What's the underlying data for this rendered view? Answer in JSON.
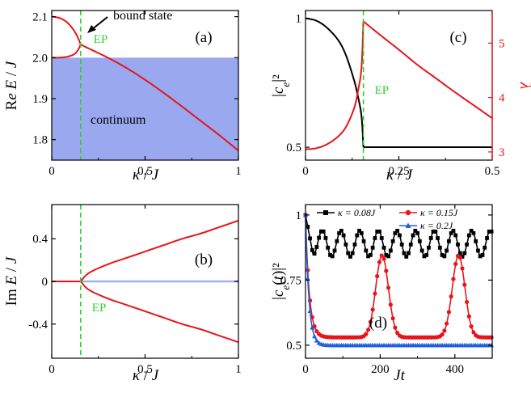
{
  "figure": {
    "colors": {
      "red": "#e8141c",
      "black": "#000000",
      "blue": "#1f5fe0",
      "green": "#2fd12f",
      "continuum_fill": "#9aa8f0",
      "im_blue_line": "#9fb0ee"
    }
  },
  "chart_data": [
    {
      "id": "a",
      "type": "line",
      "panel_label": "(a)",
      "xlabel": "κ / J",
      "ylabel": "Re E / J",
      "xlim": [
        0,
        1
      ],
      "ylim": [
        1.75,
        2.115
      ],
      "xticks": [
        0,
        0.5,
        1
      ],
      "xtick_labels": [
        "0",
        "0.5",
        "1"
      ],
      "yticks": [
        1.8,
        1.9,
        2.0,
        2.1
      ],
      "ytick_labels": [
        "1.8",
        "1.9",
        "2.0",
        "2.1"
      ],
      "ep_x": 0.155,
      "ep_label": "EP",
      "annotations": {
        "bound_state": "bound state",
        "continuum": "continuum"
      },
      "continuum_band": [
        1.75,
        2.0
      ],
      "series": [
        {
          "name": "upper branch",
          "color": "red",
          "x": [
            0,
            0.04,
            0.08,
            0.11,
            0.13,
            0.145,
            0.155
          ],
          "y": [
            2.1,
            2.097,
            2.087,
            2.072,
            2.058,
            2.044,
            2.032
          ]
        },
        {
          "name": "lower branch",
          "color": "red",
          "x": [
            0,
            0.04,
            0.08,
            0.11,
            0.13,
            0.145,
            0.155
          ],
          "y": [
            2.0,
            2.0,
            2.002,
            2.006,
            2.012,
            2.022,
            2.032
          ]
        },
        {
          "name": "after EP",
          "color": "red",
          "x": [
            0.155,
            0.2,
            0.3,
            0.4,
            0.5,
            0.6,
            0.7,
            0.8,
            0.9,
            1.0
          ],
          "y": [
            2.032,
            2.022,
            2.0,
            1.975,
            1.946,
            1.914,
            1.88,
            1.845,
            1.81,
            1.773
          ]
        }
      ]
    },
    {
      "id": "b",
      "type": "line",
      "panel_label": "(b)",
      "xlabel": "κ / J",
      "ylabel": "Im E / J",
      "xlim": [
        0,
        1
      ],
      "ylim": [
        -0.72,
        0.72
      ],
      "xticks": [
        0,
        0.5,
        1
      ],
      "xtick_labels": [
        "0",
        "0.5",
        "1"
      ],
      "yticks": [
        -0.4,
        0,
        0.4
      ],
      "ytick_labels": [
        "-0.4",
        "0",
        "0.4"
      ],
      "ep_x": 0.155,
      "ep_label": "EP",
      "series": [
        {
          "name": "zero line",
          "color": "im_blue_line",
          "x": [
            0.155,
            1.0
          ],
          "y": [
            0,
            0
          ]
        },
        {
          "name": "before EP",
          "color": "red",
          "x": [
            0,
            0.155
          ],
          "y": [
            0,
            0
          ]
        },
        {
          "name": "upper",
          "color": "red",
          "x": [
            0.155,
            0.2,
            0.3,
            0.4,
            0.5,
            0.6,
            0.7,
            0.8,
            0.9,
            1.0
          ],
          "y": [
            0,
            0.08,
            0.16,
            0.22,
            0.28,
            0.34,
            0.4,
            0.45,
            0.51,
            0.57
          ]
        },
        {
          "name": "lower",
          "color": "red",
          "x": [
            0.155,
            0.2,
            0.3,
            0.4,
            0.5,
            0.6,
            0.7,
            0.8,
            0.9,
            1.0
          ],
          "y": [
            0,
            -0.08,
            -0.16,
            -0.22,
            -0.28,
            -0.34,
            -0.4,
            -0.45,
            -0.51,
            -0.57
          ]
        }
      ]
    },
    {
      "id": "c",
      "type": "line",
      "panel_label": "(c)",
      "xlabel": "κ / J",
      "ylabel": "|c_e|²",
      "ylabel_right": "λ",
      "xlim": [
        0,
        0.5
      ],
      "ylim": [
        0.45,
        1.03
      ],
      "ylim_right": [
        2.85,
        5.6
      ],
      "xticks": [
        0,
        0.25,
        0.5
      ],
      "xtick_labels": [
        "0",
        "0.25",
        "0.5"
      ],
      "yticks": [
        0.5,
        1
      ],
      "ytick_labels": [
        "0.5",
        "1"
      ],
      "yticks_right": [
        3,
        4,
        5
      ],
      "ytick_labels_right": [
        "3",
        "4",
        "5"
      ],
      "ep_x": 0.155,
      "ep_label": "EP",
      "series": [
        {
          "name": "|c_e|^2",
          "axis": "left",
          "color": "black",
          "x": [
            0,
            0.03,
            0.06,
            0.09,
            0.11,
            0.13,
            0.14,
            0.15,
            0.155,
            0.2,
            0.3,
            0.4,
            0.5
          ],
          "y": [
            1.0,
            0.99,
            0.96,
            0.91,
            0.85,
            0.76,
            0.7,
            0.62,
            0.5,
            0.5,
            0.5,
            0.5,
            0.5
          ]
        },
        {
          "name": "λ",
          "axis": "right",
          "color": "red",
          "x": [
            0,
            0.03,
            0.06,
            0.09,
            0.11,
            0.13,
            0.14,
            0.15,
            0.155,
            0.2,
            0.25,
            0.3,
            0.35,
            0.4,
            0.45,
            0.5
          ],
          "y": [
            3.05,
            3.07,
            3.15,
            3.3,
            3.48,
            3.8,
            4.1,
            4.55,
            5.4,
            5.15,
            4.88,
            4.6,
            4.35,
            4.1,
            3.86,
            3.62
          ]
        }
      ]
    },
    {
      "id": "d",
      "type": "line",
      "panel_label": "(d)",
      "xlabel": "Jt",
      "ylabel": "|c_e(t)|²",
      "xlim": [
        0,
        500
      ],
      "ylim": [
        0.45,
        1.04
      ],
      "xticks": [
        0,
        200,
        400
      ],
      "xtick_labels": [
        "0",
        "200",
        "400"
      ],
      "yticks": [
        0.5,
        0.75,
        1
      ],
      "ytick_labels": [
        "0.5",
        "0.75",
        "1"
      ],
      "legend": [
        "κ = 0.08J",
        "κ = 0.15J",
        "κ = 0.2J"
      ],
      "series": [
        {
          "name": "κ = 0.08J",
          "color": "black",
          "marker": "square",
          "model": {
            "kind": "oscillation",
            "decay_to": 0.89,
            "amplitude": 0.05,
            "period": 50,
            "tau": 8
          }
        },
        {
          "name": "κ = 0.15J",
          "color": "red",
          "marker": "circle",
          "model": {
            "kind": "peaks",
            "base": 0.53,
            "peak": 0.845,
            "centers": [
              205,
              410
            ],
            "width": 24,
            "tau": 10
          }
        },
        {
          "name": "κ = 0.2J",
          "color": "blue",
          "marker": "triangle",
          "model": {
            "kind": "decay",
            "base": 0.5,
            "tau": 9
          }
        }
      ]
    }
  ]
}
